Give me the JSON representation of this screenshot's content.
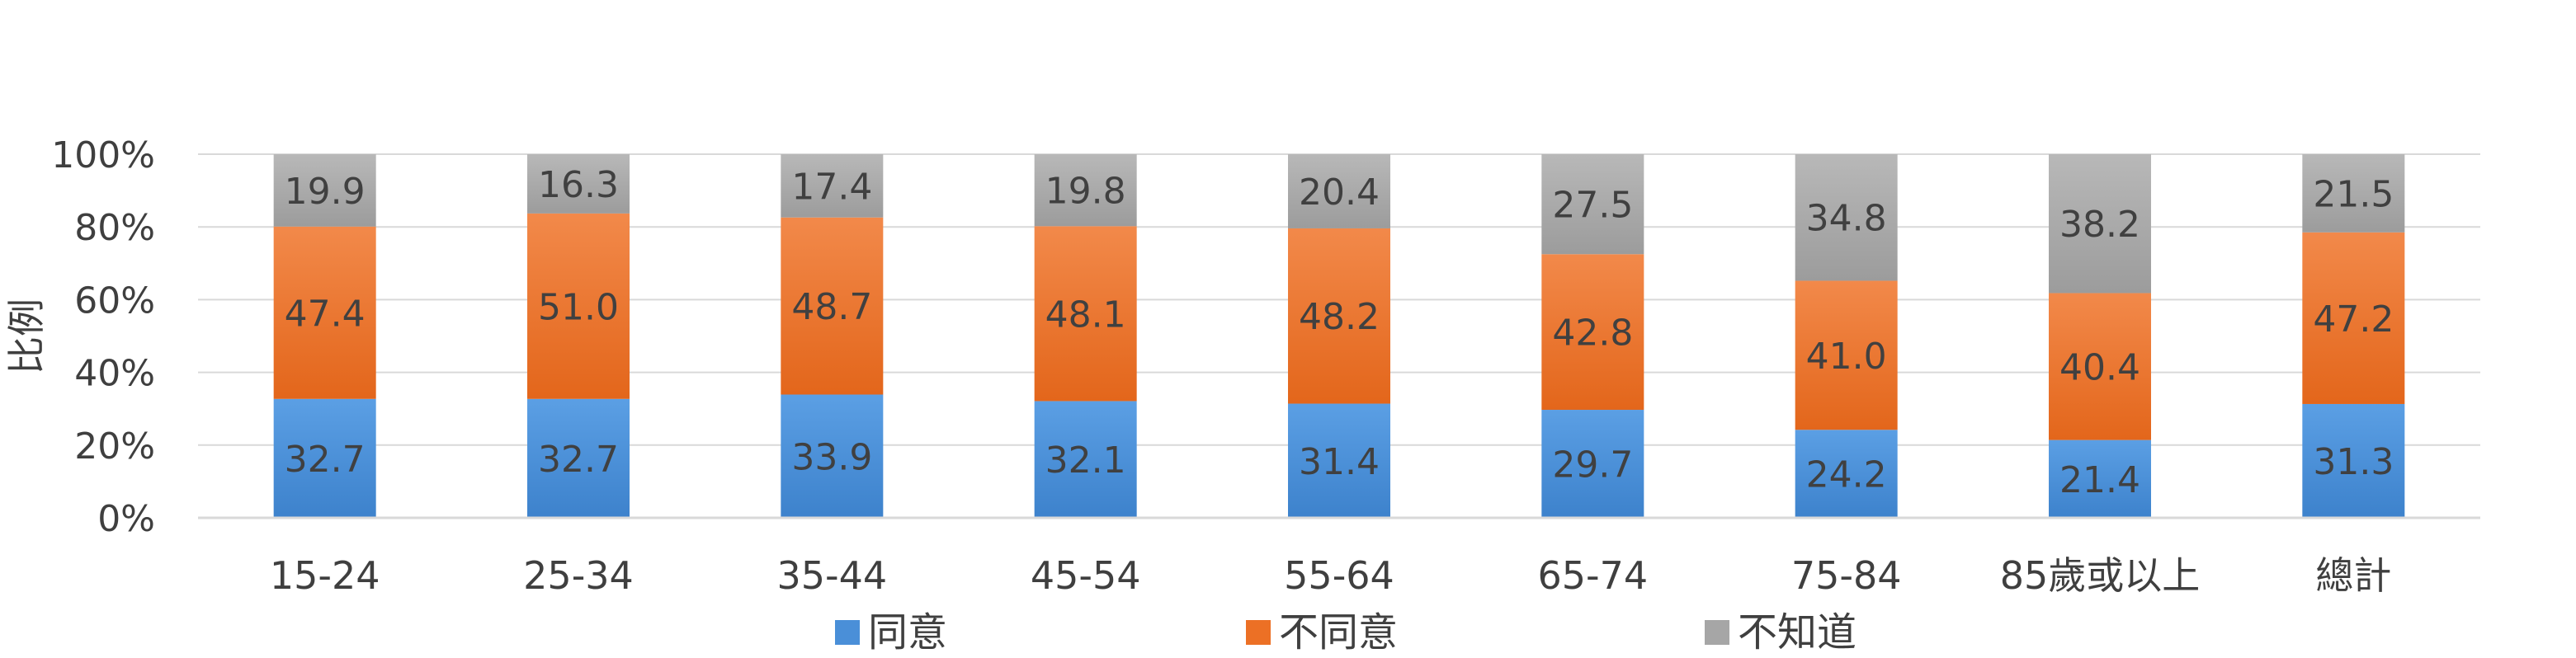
{
  "chart_data": {
    "type": "bar",
    "stacked": true,
    "ylabel": "比例",
    "ylim": [
      0,
      100
    ],
    "y_ticks": [
      "0%",
      "20%",
      "40%",
      "60%",
      "80%",
      "100%"
    ],
    "grid": true,
    "legend_position": "bottom",
    "categories": [
      "15-24",
      "25-34",
      "35-44",
      "45-54",
      "55-64",
      "65-74",
      "75-84",
      "85歲或以上",
      "總計"
    ],
    "series": [
      {
        "name": "同意",
        "color": "#4a8fd8",
        "values": [
          32.7,
          32.7,
          33.9,
          32.1,
          31.4,
          29.7,
          24.2,
          21.4,
          31.3
        ],
        "labels": [
          "32.7",
          "32.7",
          "33.9",
          "32.1",
          "31.4",
          "29.7",
          "24.2",
          "21.4",
          "31.3"
        ]
      },
      {
        "name": "不同意",
        "color": "#ec7025",
        "values": [
          47.4,
          51.0,
          48.7,
          48.1,
          48.2,
          42.8,
          41.0,
          40.4,
          47.2
        ],
        "labels": [
          "47.4",
          "51.0",
          "48.7",
          "48.1",
          "48.2",
          "42.8",
          "41.0",
          "40.4",
          "47.2"
        ]
      },
      {
        "name": "不知道",
        "color": "#a6a6a6",
        "values": [
          19.9,
          16.3,
          17.4,
          19.8,
          20.4,
          27.5,
          34.8,
          38.2,
          21.5
        ],
        "labels": [
          "19.9",
          "16.3",
          "17.4",
          "19.8",
          "20.4",
          "27.5",
          "34.8",
          "38.2",
          "21.5"
        ]
      }
    ]
  }
}
